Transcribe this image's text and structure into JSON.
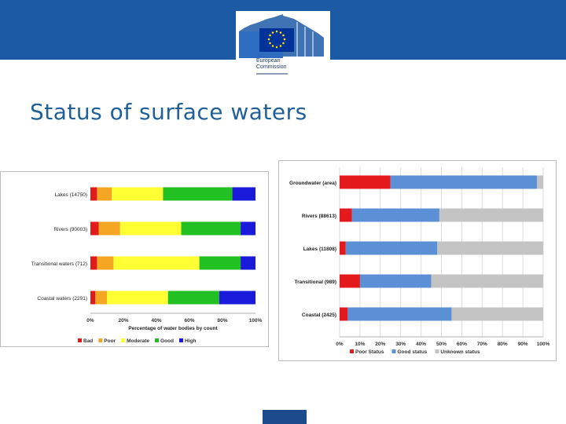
{
  "header": {
    "logo_line1": "European",
    "logo_line2": "Commission",
    "brand_color": "#1d5aa6"
  },
  "page": {
    "title": "Status of surface waters"
  },
  "chart_data": [
    {
      "type": "bar",
      "orientation": "horizontal",
      "stacked": true,
      "categories": [
        "Lakes (14750)",
        "Rivers (90003)",
        "Transitional waters (712)",
        "Coastal waters (2291)"
      ],
      "series": [
        {
          "name": "Bad",
          "color": "#e31a1c",
          "values": [
            4,
            5,
            4,
            3
          ]
        },
        {
          "name": "Poor",
          "color": "#f5a623",
          "values": [
            9,
            13,
            10,
            7
          ]
        },
        {
          "name": "Moderate",
          "color": "#ffff33",
          "values": [
            31,
            37,
            52,
            37
          ]
        },
        {
          "name": "Good",
          "color": "#22c022",
          "values": [
            42,
            36,
            25,
            31
          ]
        },
        {
          "name": "High",
          "color": "#1a1adb",
          "values": [
            14,
            9,
            9,
            22
          ]
        }
      ],
      "xticks": [
        "0%",
        "20%",
        "40%",
        "60%",
        "80%",
        "100%"
      ],
      "xlabel": "Percentage of water bodies by count",
      "xlim": [
        0,
        100
      ],
      "legend_position": "bottom"
    },
    {
      "type": "bar",
      "orientation": "horizontal",
      "stacked": true,
      "categories": [
        "Groundwater (area)",
        "Rivers (88613)",
        "Lakes (11808)",
        "Transitional (989)",
        "Coastal (2425)"
      ],
      "series": [
        {
          "name": "Poor Status",
          "color": "#e3191c",
          "values": [
            25,
            6,
            3,
            10,
            4
          ]
        },
        {
          "name": "Good status",
          "color": "#5b8fd6",
          "values": [
            72,
            43,
            45,
            35,
            51
          ]
        },
        {
          "name": "Unknown status",
          "color": "#c4c4c4",
          "values": [
            3,
            51,
            52,
            55,
            45
          ]
        }
      ],
      "xticks": [
        "0%",
        "10%",
        "20%",
        "30%",
        "40%",
        "50%",
        "60%",
        "70%",
        "80%",
        "90%",
        "100%"
      ],
      "xlim": [
        0,
        100
      ],
      "grid": true,
      "legend_position": "bottom"
    }
  ]
}
